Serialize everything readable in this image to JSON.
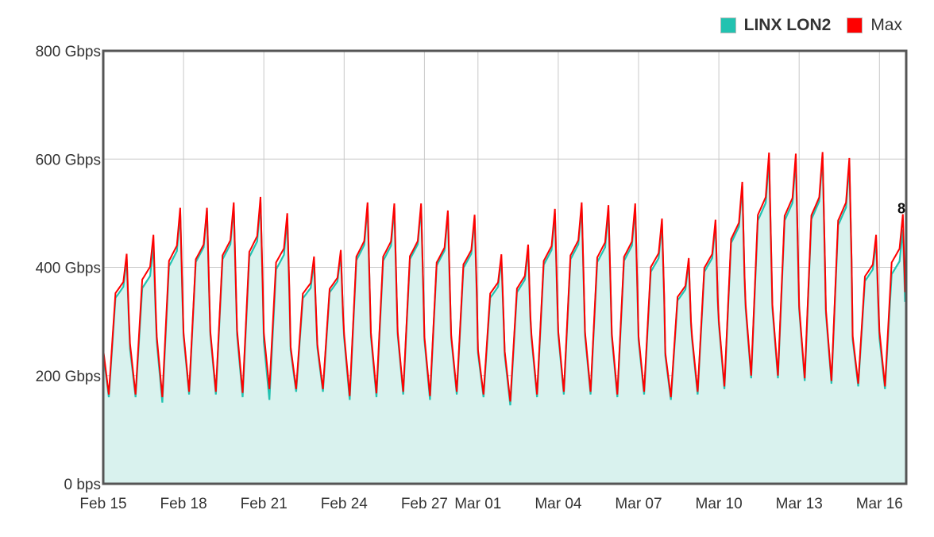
{
  "legend": [
    {
      "label": "LINX LON2",
      "color": "#22c2b0",
      "bold": true
    },
    {
      "label": "Max",
      "color": "#ff0000",
      "bold": false
    }
  ],
  "chart_data": {
    "type": "area",
    "title": "",
    "xlabel": "",
    "ylabel": "",
    "ylim": [
      0,
      800
    ],
    "yunit": "Gbps",
    "y_ticks": [
      {
        "value": 0,
        "label": "0 bps"
      },
      {
        "value": 200,
        "label": "200 Gbps"
      },
      {
        "value": 400,
        "label": "400 Gbps"
      },
      {
        "value": 600,
        "label": "600 Gbps"
      },
      {
        "value": 800,
        "label": "800 Gbps"
      }
    ],
    "xlim": [
      "2021-02-15",
      "2021-03-17"
    ],
    "x_ticks": [
      {
        "date": "2021-02-15",
        "label": "Feb 15"
      },
      {
        "date": "2021-02-18",
        "label": "Feb 18"
      },
      {
        "date": "2021-02-21",
        "label": "Feb 21"
      },
      {
        "date": "2021-02-24",
        "label": "Feb 24"
      },
      {
        "date": "2021-02-27",
        "label": "Feb 27"
      },
      {
        "date": "2021-03-01",
        "label": "Mar 01"
      },
      {
        "date": "2021-03-04",
        "label": "Mar 04"
      },
      {
        "date": "2021-03-07",
        "label": "Mar 07"
      },
      {
        "date": "2021-03-10",
        "label": "Mar 10"
      },
      {
        "date": "2021-03-13",
        "label": "Mar 13"
      },
      {
        "date": "2021-03-16",
        "label": "Mar 16"
      }
    ],
    "grid": true,
    "legend_position": "top-right",
    "series": [
      {
        "name": "LINX LON2",
        "color": "#22c2b0",
        "fill": "#d9f2ee",
        "daily": [
          {
            "date": "2021-02-15",
            "low": 160,
            "high": 415
          },
          {
            "date": "2021-02-16",
            "low": 160,
            "high": 440
          },
          {
            "date": "2021-02-17",
            "low": 150,
            "high": 500
          },
          {
            "date": "2021-02-18",
            "low": 165,
            "high": 505
          },
          {
            "date": "2021-02-19",
            "low": 165,
            "high": 512
          },
          {
            "date": "2021-02-20",
            "low": 160,
            "high": 520
          },
          {
            "date": "2021-02-21",
            "low": 155,
            "high": 490
          },
          {
            "date": "2021-02-22",
            "low": 170,
            "high": 410
          },
          {
            "date": "2021-02-23",
            "low": 170,
            "high": 425
          },
          {
            "date": "2021-02-24",
            "low": 155,
            "high": 513
          },
          {
            "date": "2021-02-25",
            "low": 160,
            "high": 510
          },
          {
            "date": "2021-02-26",
            "low": 165,
            "high": 512
          },
          {
            "date": "2021-02-27",
            "low": 155,
            "high": 500
          },
          {
            "date": "2021-02-28",
            "low": 165,
            "high": 490
          },
          {
            "date": "2021-03-01",
            "low": 160,
            "high": 415
          },
          {
            "date": "2021-03-02",
            "low": 145,
            "high": 435
          },
          {
            "date": "2021-03-03",
            "low": 160,
            "high": 500
          },
          {
            "date": "2021-03-04",
            "low": 165,
            "high": 512
          },
          {
            "date": "2021-03-05",
            "low": 165,
            "high": 505
          },
          {
            "date": "2021-03-06",
            "low": 160,
            "high": 510
          },
          {
            "date": "2021-03-07",
            "low": 165,
            "high": 480
          },
          {
            "date": "2021-03-08",
            "low": 155,
            "high": 410
          },
          {
            "date": "2021-03-09",
            "low": 165,
            "high": 480
          },
          {
            "date": "2021-03-10",
            "low": 175,
            "high": 550
          },
          {
            "date": "2021-03-11",
            "low": 195,
            "high": 600
          },
          {
            "date": "2021-03-12",
            "low": 195,
            "high": 600
          },
          {
            "date": "2021-03-13",
            "low": 190,
            "high": 605
          },
          {
            "date": "2021-03-14",
            "low": 185,
            "high": 592
          },
          {
            "date": "2021-03-15",
            "low": 180,
            "high": 450
          },
          {
            "date": "2021-03-16",
            "low": 175,
            "high": 470
          },
          {
            "date": "2021-03-17",
            "low": 340,
            "high": 585
          }
        ]
      },
      {
        "name": "Max",
        "color": "#ff0000",
        "daily": [
          {
            "date": "2021-02-15",
            "low": 165,
            "high": 425
          },
          {
            "date": "2021-02-16",
            "low": 165,
            "high": 460
          },
          {
            "date": "2021-02-17",
            "low": 160,
            "high": 510
          },
          {
            "date": "2021-02-18",
            "low": 170,
            "high": 510
          },
          {
            "date": "2021-02-19",
            "low": 170,
            "high": 520
          },
          {
            "date": "2021-02-20",
            "low": 168,
            "high": 530
          },
          {
            "date": "2021-02-21",
            "low": 175,
            "high": 500
          },
          {
            "date": "2021-02-22",
            "low": 175,
            "high": 420
          },
          {
            "date": "2021-02-23",
            "low": 175,
            "high": 432
          },
          {
            "date": "2021-02-24",
            "low": 162,
            "high": 520
          },
          {
            "date": "2021-02-25",
            "low": 167,
            "high": 518
          },
          {
            "date": "2021-02-26",
            "low": 170,
            "high": 518
          },
          {
            "date": "2021-02-27",
            "low": 162,
            "high": 505
          },
          {
            "date": "2021-02-28",
            "low": 170,
            "high": 497
          },
          {
            "date": "2021-03-01",
            "low": 165,
            "high": 424
          },
          {
            "date": "2021-03-02",
            "low": 152,
            "high": 442
          },
          {
            "date": "2021-03-03",
            "low": 165,
            "high": 508
          },
          {
            "date": "2021-03-04",
            "low": 170,
            "high": 520
          },
          {
            "date": "2021-03-05",
            "low": 170,
            "high": 515
          },
          {
            "date": "2021-03-06",
            "low": 165,
            "high": 518
          },
          {
            "date": "2021-03-07",
            "low": 170,
            "high": 490
          },
          {
            "date": "2021-03-08",
            "low": 160,
            "high": 417
          },
          {
            "date": "2021-03-09",
            "low": 170,
            "high": 488
          },
          {
            "date": "2021-03-10",
            "low": 180,
            "high": 558
          },
          {
            "date": "2021-03-11",
            "low": 200,
            "high": 612
          },
          {
            "date": "2021-03-12",
            "low": 200,
            "high": 610
          },
          {
            "date": "2021-03-13",
            "low": 195,
            "high": 613
          },
          {
            "date": "2021-03-14",
            "low": 190,
            "high": 602
          },
          {
            "date": "2021-03-15",
            "low": 185,
            "high": 460
          },
          {
            "date": "2021-03-16",
            "low": 180,
            "high": 498
          },
          {
            "date": "2021-03-17",
            "low": 345,
            "high": 593
          }
        ]
      }
    ],
    "annotation": {
      "label": "8",
      "date": "2021-03-17",
      "value": 510
    }
  }
}
